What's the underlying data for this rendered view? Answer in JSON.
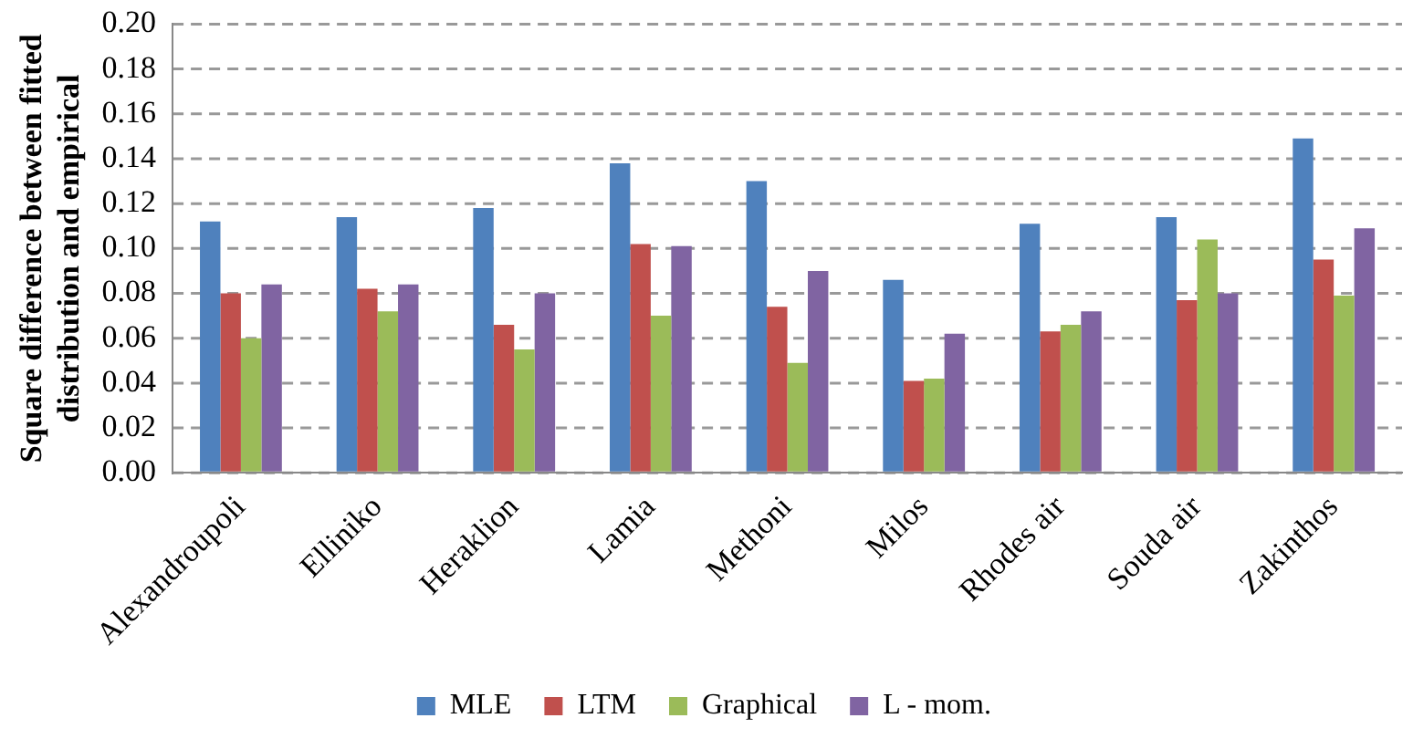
{
  "chart_data": {
    "type": "bar",
    "ylabel": "Square difference between fitted distribution and empirical",
    "categories": [
      "Alexandroupoli",
      "Elliniko",
      "Heraklion",
      "Lamia",
      "Methoni",
      "Milos",
      "Rhodes air",
      "Souda air",
      "Zakinthos"
    ],
    "series": [
      {
        "name": "MLE",
        "color": "#4f81bd",
        "values": [
          0.112,
          0.114,
          0.118,
          0.138,
          0.13,
          0.086,
          0.111,
          0.114,
          0.149
        ]
      },
      {
        "name": "LTM",
        "color": "#c0504d",
        "values": [
          0.08,
          0.082,
          0.066,
          0.102,
          0.074,
          0.041,
          0.063,
          0.077,
          0.095
        ]
      },
      {
        "name": "Graphical",
        "color": "#9bbb59",
        "values": [
          0.06,
          0.072,
          0.055,
          0.07,
          0.049,
          0.042,
          0.066,
          0.104,
          0.079
        ]
      },
      {
        "name": "L - mom.",
        "color": "#8064a2",
        "values": [
          0.084,
          0.084,
          0.08,
          0.101,
          0.09,
          0.062,
          0.072,
          0.08,
          0.109
        ]
      }
    ],
    "ylim": [
      0,
      0.2
    ],
    "yticks": [
      {
        "value": 0,
        "label": "0.00"
      },
      {
        "value": 0.02,
        "label": "0.02"
      },
      {
        "value": 0.04,
        "label": "0.04"
      },
      {
        "value": 0.06,
        "label": "0.06"
      },
      {
        "value": 0.08,
        "label": "0.08"
      },
      {
        "value": 0.1,
        "label": "0.10"
      },
      {
        "value": 0.12,
        "label": "0.12"
      },
      {
        "value": 0.14,
        "label": "0.14"
      },
      {
        "value": 0.16,
        "label": "0.16"
      },
      {
        "value": 0.18,
        "label": "0.18"
      },
      {
        "value": 0.2,
        "label": "0.20"
      }
    ],
    "grid": "y",
    "legend": "bottom"
  }
}
